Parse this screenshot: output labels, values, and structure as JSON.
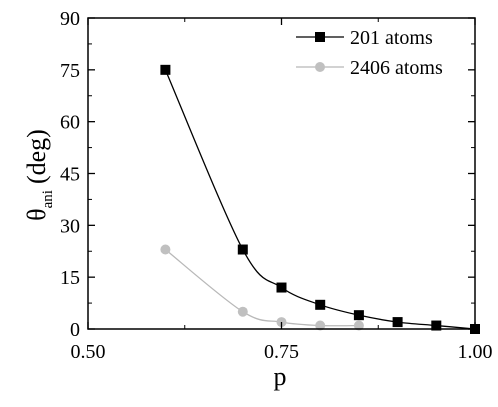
{
  "chart_data": {
    "type": "scatter",
    "xlabel": "p",
    "ylabel": {
      "symbol": "θ",
      "subscript": "ani",
      "unit": "(deg)"
    },
    "xlim": [
      0.5,
      1.0
    ],
    "ylim": [
      0,
      90
    ],
    "x_ticks": [
      0.5,
      0.75,
      1.0
    ],
    "x_tick_labels": [
      "0.50",
      "0.75",
      "1.00"
    ],
    "y_ticks": [
      0,
      15,
      30,
      45,
      60,
      75,
      90
    ],
    "y_tick_labels": [
      "0",
      "15",
      "30",
      "45",
      "60",
      "75",
      "90"
    ],
    "grid": false,
    "legend_position": "top-right",
    "series": [
      {
        "name": "201 atoms",
        "marker": "square",
        "color": "#000000",
        "line_color": "#000000",
        "x": [
          0.6,
          0.7,
          0.75,
          0.8,
          0.85,
          0.9,
          0.95,
          1.0
        ],
        "y": [
          75,
          23,
          12,
          7,
          4,
          2,
          1,
          0
        ]
      },
      {
        "name": "2406 atoms",
        "marker": "circle",
        "color": "#c0c0c0",
        "line_color": "#b8b8b8",
        "x": [
          0.6,
          0.7,
          0.75,
          0.8,
          0.85
        ],
        "y": [
          23,
          5,
          2,
          1,
          1
        ]
      }
    ]
  }
}
